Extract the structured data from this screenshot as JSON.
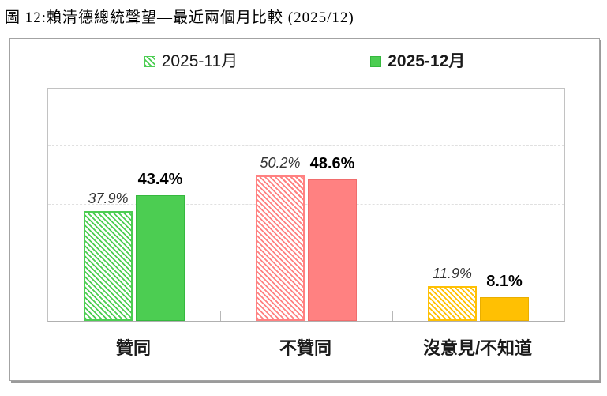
{
  "figure_title": "圖 12:賴清德總統聲望—最近兩個月比較 (2025/12)",
  "chart_data": {
    "type": "bar",
    "title": "賴清德總統聲望—最近兩個月比較 (2025/12)",
    "categories": [
      "贊同",
      "不贊同",
      "沒意見/不知道"
    ],
    "series": [
      {
        "name": "2025-11月",
        "style": "hatched",
        "values": [
          37.9,
          50.2,
          11.9
        ],
        "labels": [
          "37.9%",
          "50.2%",
          "11.9%"
        ],
        "colors": [
          "#4ccd52",
          "#ff8181",
          "#ffc003"
        ]
      },
      {
        "name": "2025-12月",
        "style": "solid",
        "values": [
          43.4,
          48.6,
          8.1
        ],
        "labels": [
          "43.4%",
          "48.6%",
          "8.1%"
        ],
        "colors": [
          "#4ccd52",
          "#ff8181",
          "#ffc003"
        ],
        "border_colors": [
          "#35b83e",
          "#f06d6d",
          "#e9ae00"
        ]
      }
    ],
    "ylim": [
      0,
      80
    ],
    "gridlines": [
      20,
      40,
      60
    ],
    "legend_position": "top",
    "grid": true,
    "xlabel": "",
    "ylabel": ""
  }
}
